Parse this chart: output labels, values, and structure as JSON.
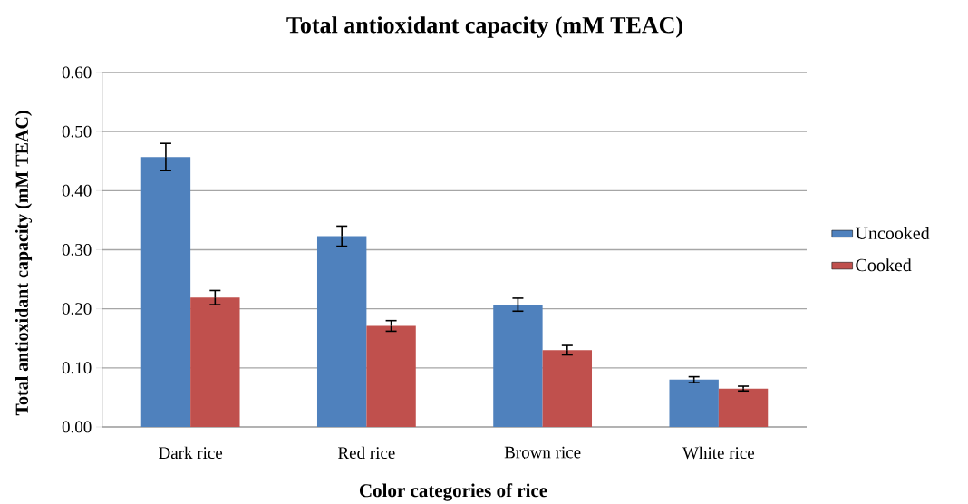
{
  "chart_data": {
    "type": "bar",
    "title": "Total antioxidant capacity (mM TEAC)",
    "xlabel": "Color categories of rice",
    "ylabel": "Total antioxidant capacity (mM TEAC)",
    "categories": [
      "Dark rice",
      "Red rice",
      "Brown rice",
      "White  rice"
    ],
    "series": [
      {
        "name": "Uncooked",
        "color": "#4f81bd",
        "values": [
          0.457,
          0.323,
          0.207,
          0.08
        ],
        "errors": [
          0.023,
          0.017,
          0.011,
          0.005
        ]
      },
      {
        "name": "Cooked",
        "color": "#c0504d",
        "values": [
          0.219,
          0.171,
          0.13,
          0.065
        ],
        "errors": [
          0.012,
          0.009,
          0.008,
          0.004
        ]
      }
    ],
    "ylim": [
      0,
      0.6
    ],
    "yticks": [
      {
        "value": 0,
        "label": "0.00"
      },
      {
        "value": 0.1,
        "label": "0.10"
      },
      {
        "value": 0.2,
        "label": "0.20"
      },
      {
        "value": 0.3,
        "label": "0.30"
      },
      {
        "value": 0.4,
        "label": "0.40"
      },
      {
        "value": 0.5,
        "label": "0.50"
      },
      {
        "value": 0.6,
        "label": "0.60"
      }
    ],
    "grid": "y",
    "legend": "right"
  }
}
